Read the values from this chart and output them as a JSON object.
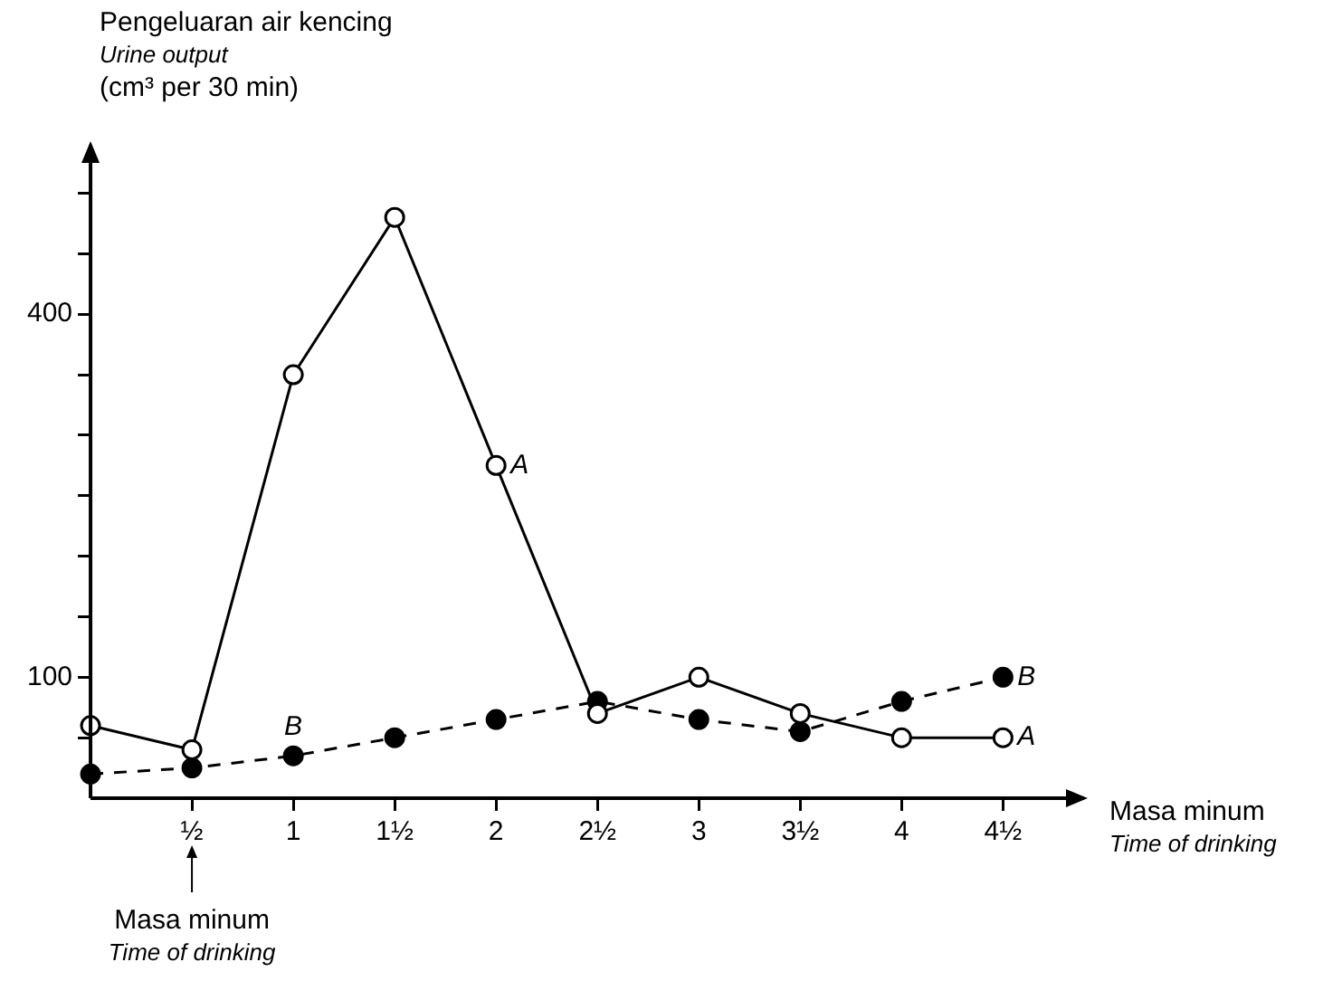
{
  "chart_data": {
    "type": "line",
    "ylabel": "Pengeluaran air kencing\nUrine output\n(cm³ per 30 min)",
    "xlabel": "Masa minum\nTime of drinking",
    "x": [
      0,
      0.5,
      1,
      1.5,
      2,
      2.5,
      3,
      3.5,
      4,
      4.5
    ],
    "series": [
      {
        "name": "A",
        "color": "#000000",
        "line_style": "solid",
        "values": [
          60,
          40,
          350,
          480,
          275,
          70,
          100,
          70,
          50,
          50
        ]
      },
      {
        "name": "B",
        "color": "#000000",
        "line_style": "dashed",
        "values": [
          20,
          25,
          35,
          50,
          65,
          80,
          65,
          55,
          80,
          100
        ]
      }
    ],
    "xlim": [
      0,
      4.9
    ],
    "ylim": [
      0,
      540
    ],
    "xticks": [
      {
        "value": 0.5,
        "label": "½"
      },
      1,
      {
        "value": 1.5,
        "label": "1½"
      },
      2,
      {
        "value": 2.5,
        "label": "2½"
      },
      3,
      {
        "value": 3.5,
        "label": "3½"
      },
      4,
      {
        "value": 4.5,
        "label": "4½"
      }
    ],
    "yticks": [
      {
        "value": 50,
        "label": null
      },
      100,
      {
        "value": 150,
        "label": null
      },
      {
        "value": 200,
        "label": null
      },
      {
        "value": 250,
        "label": null
      },
      {
        "value": 300,
        "label": null
      },
      {
        "value": 350,
        "label": null
      },
      400,
      {
        "value": 450,
        "label": null
      },
      {
        "value": 500,
        "label": null
      }
    ],
    "marker": "circle",
    "grid": false,
    "legend": false,
    "annotations": [
      {
        "text": "A",
        "x": 2,
        "y": 275
      },
      {
        "text": "B",
        "x": 1,
        "y": 35
      },
      "Masa minum\nTime of drinking"
    ]
  }
}
